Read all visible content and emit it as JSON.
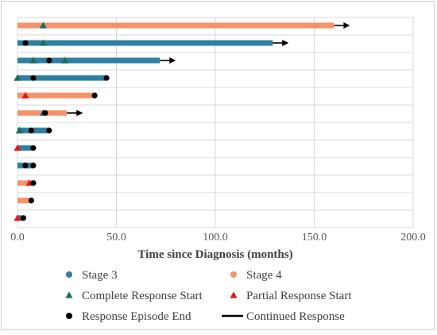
{
  "chart_data": {
    "type": "swimmer",
    "xlabel": "Time since Diagnosis (months)",
    "xlim": [
      0,
      200
    ],
    "xticks": [
      "0.0",
      "50.0",
      "100.0",
      "150.0",
      "200.0"
    ],
    "colors": {
      "stage3": "#2e7fa0",
      "stage4": "#f4936a",
      "complete": "#1f6b5a",
      "partial": "#e31a1c",
      "end": "#000000",
      "continued": "#000000",
      "grid": "#d9d9d9"
    },
    "legend": {
      "stage3": "Stage 3",
      "stage4": "Stage 4",
      "complete": "Complete Response Start",
      "partial": "Partial Response Start",
      "end": "Response Episode End",
      "continued": "Continued Response"
    },
    "patients": [
      {
        "stage": "Stage 4",
        "duration": 160,
        "complete": [
          13
        ],
        "partial": [],
        "end": [],
        "continued": true
      },
      {
        "stage": "Stage 3",
        "duration": 129,
        "complete": [
          13
        ],
        "partial": [],
        "end": [
          4
        ],
        "continued": true
      },
      {
        "stage": "Stage 3",
        "duration": 72,
        "complete": [
          8,
          24
        ],
        "partial": [],
        "end": [
          16
        ],
        "continued": true
      },
      {
        "stage": "Stage 3",
        "duration": 45,
        "complete": [
          0
        ],
        "partial": [],
        "end": [
          8,
          45
        ],
        "continued": false
      },
      {
        "stage": "Stage 4",
        "duration": 39,
        "complete": [],
        "partial": [
          4
        ],
        "end": [
          39
        ],
        "continued": false
      },
      {
        "stage": "Stage 4",
        "duration": 25,
        "complete": [
          13
        ],
        "partial": [],
        "end": [
          14
        ],
        "continued": true
      },
      {
        "stage": "Stage 3",
        "duration": 16,
        "complete": [
          1
        ],
        "partial": [],
        "end": [
          7,
          16
        ],
        "continued": false
      },
      {
        "stage": "Stage 3",
        "duration": 8,
        "complete": [],
        "partial": [
          0
        ],
        "end": [
          8
        ],
        "continued": false
      },
      {
        "stage": "Stage 3",
        "duration": 8,
        "complete": [],
        "partial": [],
        "end": [
          4,
          8
        ],
        "continued": false
      },
      {
        "stage": "Stage 4",
        "duration": 8,
        "complete": [],
        "partial": [
          6
        ],
        "end": [
          8
        ],
        "continued": false
      },
      {
        "stage": "Stage 4",
        "duration": 7,
        "complete": [],
        "partial": [],
        "end": [
          7
        ],
        "continued": false
      },
      {
        "stage": "Stage 3",
        "duration": 3,
        "complete": [],
        "partial": [
          0
        ],
        "end": [
          3
        ],
        "continued": false
      }
    ]
  }
}
